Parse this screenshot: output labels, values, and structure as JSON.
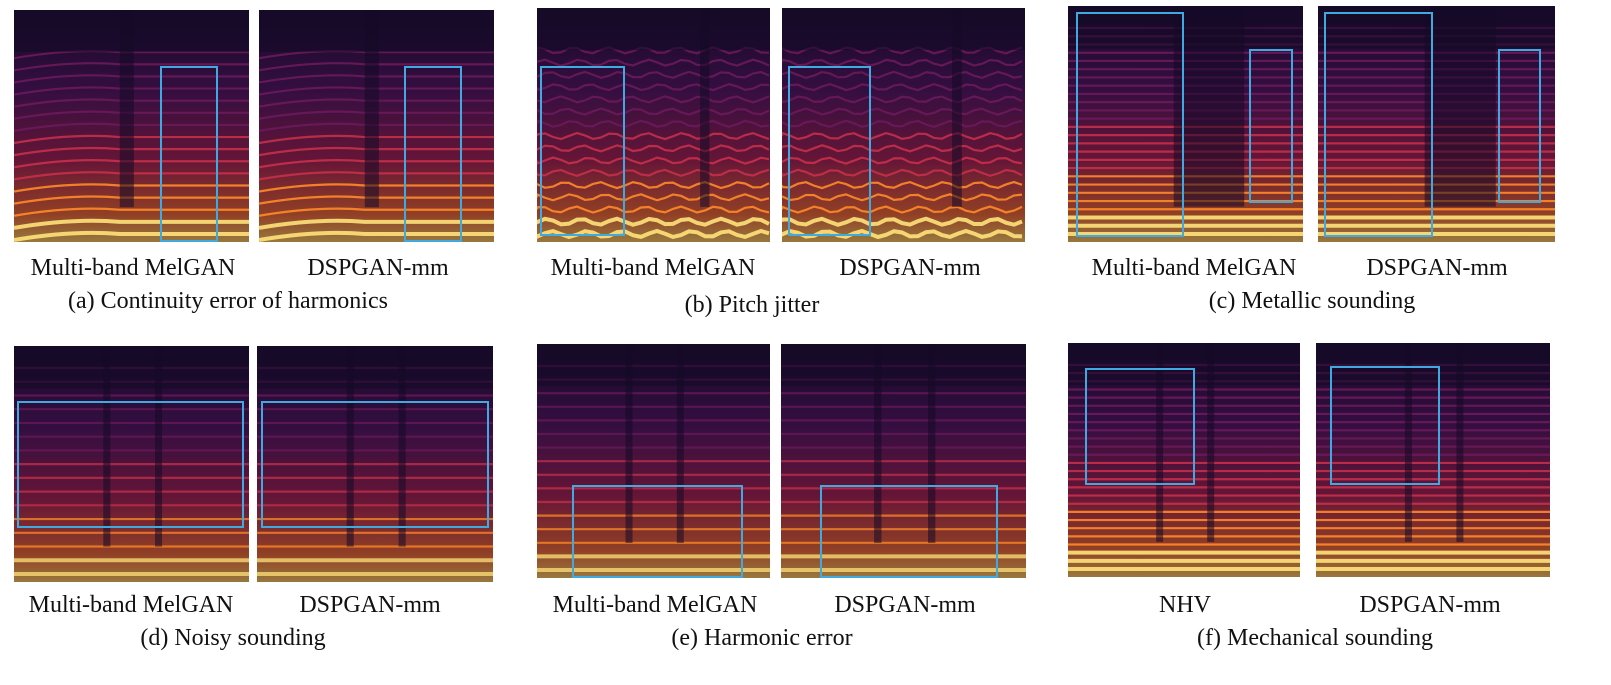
{
  "panels": [
    {
      "id": "a",
      "caption": "(a) Continuity error of harmonics",
      "left_label": "Multi-band MelGAN",
      "right_label": "DSPGAN-mm"
    },
    {
      "id": "b",
      "caption": "(b) Pitch jitter",
      "left_label": "Multi-band MelGAN",
      "right_label": "DSPGAN-mm"
    },
    {
      "id": "c",
      "caption": "(c) Metallic sounding",
      "left_label": "Multi-band MelGAN",
      "right_label": "DSPGAN-mm"
    },
    {
      "id": "d",
      "caption": "(d) Noisy sounding",
      "left_label": "Multi-band MelGAN",
      "right_label": "DSPGAN-mm"
    },
    {
      "id": "e",
      "caption": "(e) Harmonic error",
      "left_label": "Multi-band MelGAN",
      "right_label": "DSPGAN-mm"
    },
    {
      "id": "f",
      "caption": "(f) Mechanical sounding",
      "left_label": "NHV",
      "right_label": "DSPGAN-mm"
    }
  ],
  "colors": {
    "highlight_box": "#3fa9e0",
    "spectrogram_dark": "#1a0a2e",
    "spectrogram_hot": "#ffd24a"
  }
}
